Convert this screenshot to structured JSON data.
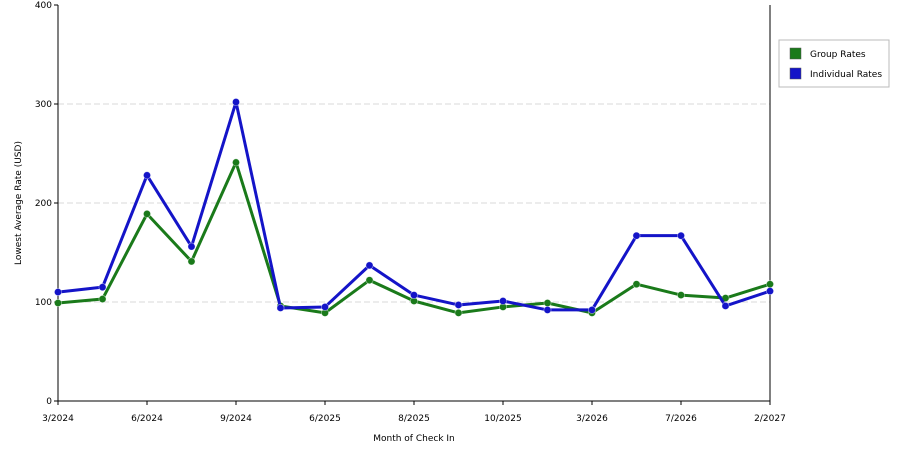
{
  "chart_data": {
    "type": "line",
    "xlabel": "Month of Check In",
    "ylabel": "Lowest Average Rate (USD)",
    "ylim": [
      0,
      400
    ],
    "yticks": [
      "0",
      "100",
      "200",
      "300",
      "400"
    ],
    "grid": true,
    "legend_position": "right",
    "x_tick_labels": [
      {
        "index": 0,
        "label": "3/2024"
      },
      {
        "index": 2,
        "label": "6/2024"
      },
      {
        "index": 4,
        "label": "9/2024"
      },
      {
        "index": 6,
        "label": "6/2025"
      },
      {
        "index": 8,
        "label": "8/2025"
      },
      {
        "index": 10,
        "label": "10/2025"
      },
      {
        "index": 12,
        "label": "3/2026"
      },
      {
        "index": 14,
        "label": "7/2026"
      },
      {
        "index": 16,
        "label": "2/2027"
      }
    ],
    "series": [
      {
        "name": "Group Rates",
        "color": "#1a7a1a",
        "values": [
          99,
          103,
          189,
          141,
          241,
          96,
          89,
          122,
          101,
          89,
          95,
          99,
          89,
          118,
          107,
          104,
          118
        ]
      },
      {
        "name": "Individual Rates",
        "color": "#1414c8",
        "values": [
          110,
          115,
          228,
          156,
          302,
          94,
          95,
          137,
          107,
          97,
          101,
          92,
          92,
          167,
          167,
          96,
          111
        ]
      }
    ]
  }
}
